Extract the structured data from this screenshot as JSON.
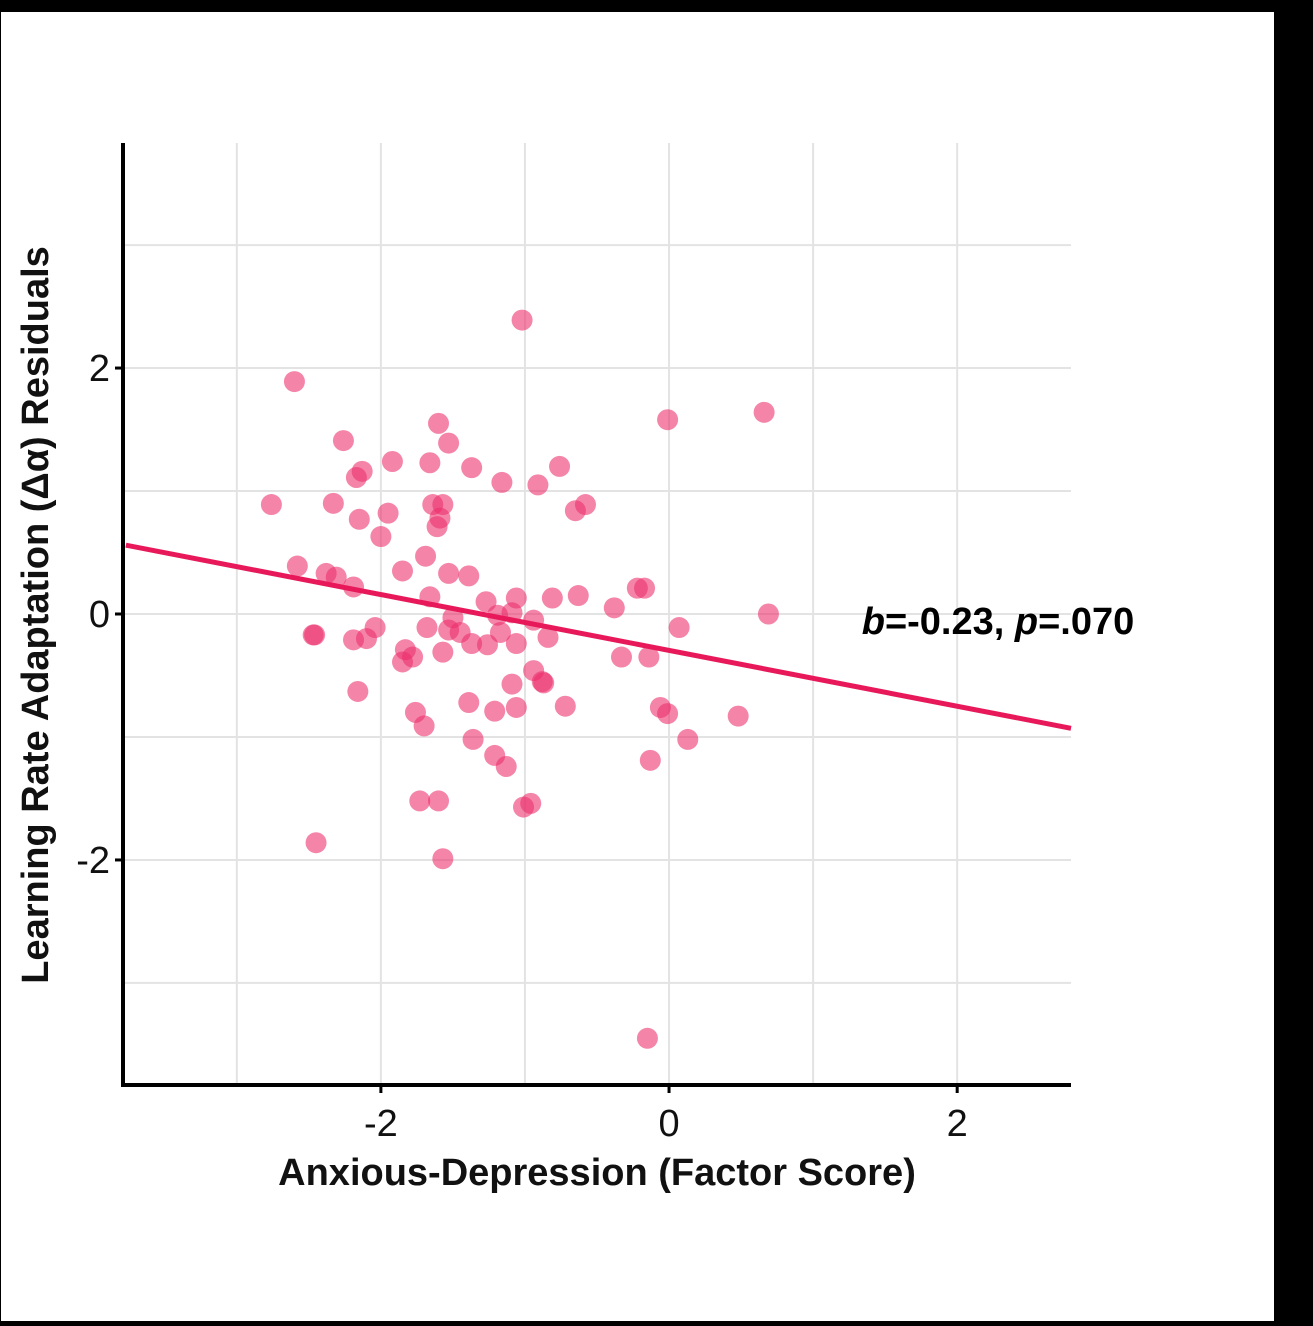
{
  "chart_data": {
    "type": "scatter",
    "title": "",
    "xlabel": "Anxious-Depression (Factor Score)",
    "ylabel": "Learning Rate Adaptation (Δα) Residuals",
    "xlim": [
      -3.79,
      2.79
    ],
    "ylim": [
      -3.83,
      3.83
    ],
    "x_ticks": [
      -2,
      0,
      2
    ],
    "x_tick_labels": [
      "-2",
      "0",
      "2"
    ],
    "y_ticks": [
      -2,
      0,
      2
    ],
    "y_tick_labels": [
      "-2",
      "0",
      "2"
    ],
    "x_gridlines": [
      -3,
      -2,
      -1,
      0,
      1,
      2
    ],
    "y_gridlines": [
      -3,
      -2,
      -1,
      0,
      1,
      2,
      3
    ],
    "grid": true,
    "legend": "none",
    "point_color": "#ec2d6a",
    "line_color": "#e8195a",
    "regression": {
      "slope": -0.227,
      "intercept": -0.296,
      "annotation": {
        "b_symbol": "b",
        "b_value": "=-0.23, ",
        "p_symbol": "p",
        "p_value": "=.070"
      }
    },
    "points": [
      [
        -1.02,
        2.39
      ],
      [
        -2.6,
        1.89
      ],
      [
        -2.26,
        1.41
      ],
      [
        -1.6,
        1.55
      ],
      [
        -1.53,
        1.39
      ],
      [
        -0.01,
        1.58
      ],
      [
        0.66,
        1.64
      ],
      [
        -1.92,
        1.24
      ],
      [
        -1.66,
        1.23
      ],
      [
        -1.37,
        1.19
      ],
      [
        -2.13,
        1.16
      ],
      [
        -2.17,
        1.11
      ],
      [
        -0.76,
        1.2
      ],
      [
        -1.16,
        1.07
      ],
      [
        -0.91,
        1.05
      ],
      [
        -2.76,
        0.89
      ],
      [
        -2.33,
        0.9
      ],
      [
        -1.64,
        0.89
      ],
      [
        -1.57,
        0.89
      ],
      [
        -0.58,
        0.89
      ],
      [
        -0.65,
        0.84
      ],
      [
        -1.95,
        0.82
      ],
      [
        -2.15,
        0.77
      ],
      [
        -1.59,
        0.78
      ],
      [
        -1.61,
        0.71
      ],
      [
        -2.0,
        0.63
      ],
      [
        -1.69,
        0.47
      ],
      [
        -2.58,
        0.39
      ],
      [
        -1.85,
        0.35
      ],
      [
        -1.53,
        0.33
      ],
      [
        -1.39,
        0.31
      ],
      [
        -2.38,
        0.33
      ],
      [
        -2.31,
        0.3
      ],
      [
        -2.19,
        0.22
      ],
      [
        -0.22,
        0.21
      ],
      [
        -0.17,
        0.21
      ],
      [
        -1.66,
        0.14
      ],
      [
        -1.27,
        0.1
      ],
      [
        -1.06,
        0.13
      ],
      [
        -0.81,
        0.13
      ],
      [
        -0.63,
        0.15
      ],
      [
        -0.38,
        0.05
      ],
      [
        0.69,
        0.0
      ],
      [
        -1.19,
        -0.01
      ],
      [
        -1.09,
        0.01
      ],
      [
        -0.94,
        -0.05
      ],
      [
        -1.5,
        -0.03
      ],
      [
        0.07,
        -0.11
      ],
      [
        -1.68,
        -0.11
      ],
      [
        -1.53,
        -0.13
      ],
      [
        -1.45,
        -0.15
      ],
      [
        -1.17,
        -0.15
      ],
      [
        -2.04,
        -0.11
      ],
      [
        -2.47,
        -0.17
      ],
      [
        -2.46,
        -0.17
      ],
      [
        -2.19,
        -0.21
      ],
      [
        -2.1,
        -0.2
      ],
      [
        -1.37,
        -0.24
      ],
      [
        -1.26,
        -0.25
      ],
      [
        -1.06,
        -0.24
      ],
      [
        -0.84,
        -0.19
      ],
      [
        -1.57,
        -0.31
      ],
      [
        -1.83,
        -0.29
      ],
      [
        -1.78,
        -0.35
      ],
      [
        -1.85,
        -0.39
      ],
      [
        -0.33,
        -0.35
      ],
      [
        -0.14,
        -0.35
      ],
      [
        -0.94,
        -0.46
      ],
      [
        -0.88,
        -0.55
      ],
      [
        -0.87,
        -0.56
      ],
      [
        -1.09,
        -0.57
      ],
      [
        -2.16,
        -0.63
      ],
      [
        -0.72,
        -0.75
      ],
      [
        -1.06,
        -0.76
      ],
      [
        -1.21,
        -0.79
      ],
      [
        -1.39,
        -0.72
      ],
      [
        -0.06,
        -0.76
      ],
      [
        -0.01,
        -0.81
      ],
      [
        0.48,
        -0.83
      ],
      [
        -1.76,
        -0.8
      ],
      [
        -1.7,
        -0.91
      ],
      [
        0.13,
        -1.02
      ],
      [
        -1.36,
        -1.02
      ],
      [
        -0.13,
        -1.19
      ],
      [
        -1.21,
        -1.15
      ],
      [
        -1.13,
        -1.24
      ],
      [
        -1.73,
        -1.52
      ],
      [
        -1.6,
        -1.52
      ],
      [
        -0.96,
        -1.54
      ],
      [
        -1.01,
        -1.57
      ],
      [
        -2.45,
        -1.86
      ],
      [
        -1.57,
        -1.99
      ],
      [
        -0.15,
        -3.45
      ]
    ]
  }
}
